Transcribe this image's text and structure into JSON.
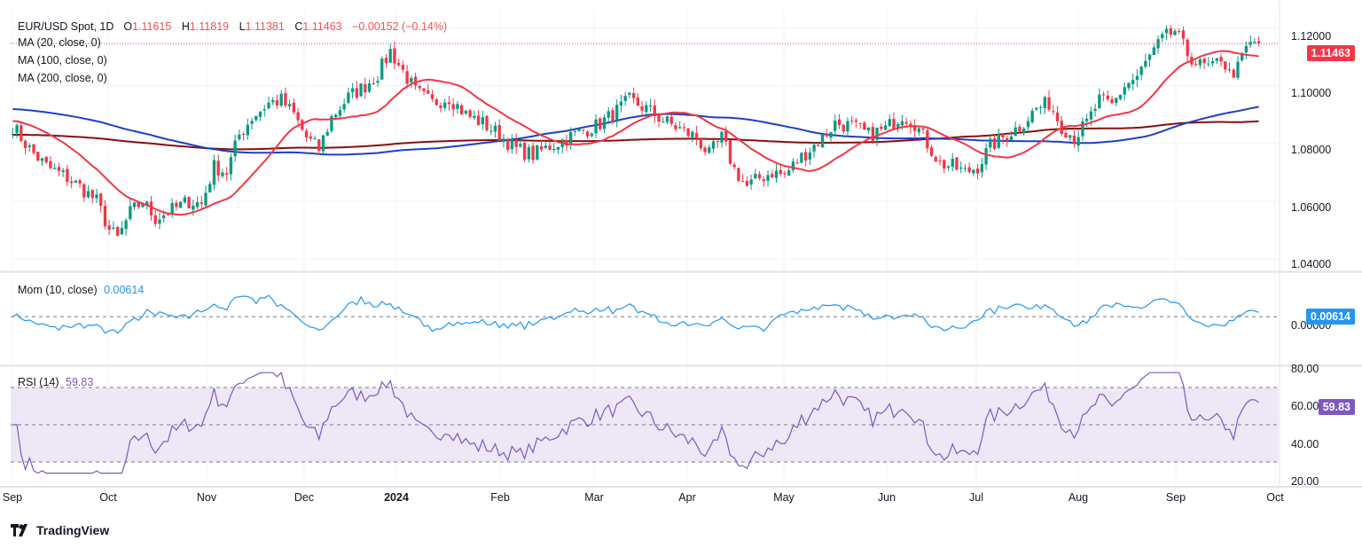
{
  "header": {
    "symbol": "EUR/USD Spot, 1D",
    "open_label": "O",
    "open": "1.11615",
    "high_label": "H",
    "high": "1.11819",
    "low_label": "L",
    "low": "1.11381",
    "close_label": "C",
    "close": "1.11463",
    "change": "−0.00152 (−0.14%)"
  },
  "indicators": {
    "ma20": "MA (20, close, 0)",
    "ma100": "MA (100, close, 0)",
    "ma200": "MA (200, close, 0)",
    "mom_label": "Mom (10, close)",
    "mom_value": "0.00614",
    "rsi_label": "RSI (14)",
    "rsi_value": "59.83"
  },
  "price_axis": [
    "1.12000",
    "1.10000",
    "1.08000",
    "1.06000",
    "1.04000"
  ],
  "mom_axis": [
    "0.00000"
  ],
  "rsi_axis": [
    "80.00",
    "60.00",
    "40.00",
    "20.00"
  ],
  "x_axis": [
    {
      "label": "Sep",
      "bold": false
    },
    {
      "label": "Oct",
      "bold": false
    },
    {
      "label": "Nov",
      "bold": false
    },
    {
      "label": "Dec",
      "bold": false
    },
    {
      "label": "2024",
      "bold": true
    },
    {
      "label": "Feb",
      "bold": false
    },
    {
      "label": "Mar",
      "bold": false
    },
    {
      "label": "Apr",
      "bold": false
    },
    {
      "label": "May",
      "bold": false
    },
    {
      "label": "Jun",
      "bold": false
    },
    {
      "label": "Jul",
      "bold": false
    },
    {
      "label": "Aug",
      "bold": false
    },
    {
      "label": "Sep",
      "bold": false
    },
    {
      "label": "Oct",
      "bold": false
    }
  ],
  "last_price_tag": "1.11463",
  "brand": "TradingView",
  "colors": {
    "up": "#089981",
    "down": "#f23645",
    "ma20": "#f23645",
    "ma100": "#1e3fc2",
    "ma200": "#880e0e",
    "momentum": "#2196f3",
    "rsi": "#7e57c2",
    "rsi_band": "#ede7f6"
  },
  "chart_data": {
    "type": "candlestick",
    "ylim": [
      1.036,
      1.126
    ],
    "anchors": [
      [
        0,
        1.086
      ],
      [
        4,
        1.078
      ],
      [
        8,
        1.072
      ],
      [
        12,
        1.069
      ],
      [
        16,
        1.065
      ],
      [
        20,
        1.06
      ],
      [
        23,
        1.05
      ],
      [
        25,
        1.047
      ],
      [
        28,
        1.056
      ],
      [
        31,
        1.06
      ],
      [
        34,
        1.054
      ],
      [
        38,
        1.057
      ],
      [
        42,
        1.06
      ],
      [
        45,
        1.059
      ],
      [
        48,
        1.072
      ],
      [
        51,
        1.07
      ],
      [
        54,
        1.083
      ],
      [
        57,
        1.089
      ],
      [
        61,
        1.094
      ],
      [
        64,
        1.095
      ],
      [
        67,
        1.09
      ],
      [
        70,
        1.082
      ],
      [
        73,
        1.078
      ],
      [
        76,
        1.089
      ],
      [
        80,
        1.096
      ],
      [
        84,
        1.1
      ],
      [
        87,
        1.104
      ],
      [
        90,
        1.112
      ],
      [
        93,
        1.105
      ],
      [
        96,
        1.098
      ],
      [
        100,
        1.094
      ],
      [
        104,
        1.096
      ],
      [
        108,
        1.09
      ],
      [
        112,
        1.087
      ],
      [
        116,
        1.083
      ],
      [
        120,
        1.078
      ],
      [
        124,
        1.076
      ],
      [
        128,
        1.079
      ],
      [
        131,
        1.081
      ],
      [
        135,
        1.084
      ],
      [
        139,
        1.086
      ],
      [
        143,
        1.09
      ],
      [
        147,
        1.095
      ],
      [
        151,
        1.092
      ],
      [
        155,
        1.088
      ],
      [
        159,
        1.085
      ],
      [
        163,
        1.082
      ],
      [
        166,
        1.076
      ],
      [
        169,
        1.082
      ],
      [
        172,
        1.071
      ],
      [
        175,
        1.065
      ],
      [
        178,
        1.068
      ],
      [
        181,
        1.07
      ],
      [
        184,
        1.069
      ],
      [
        187,
        1.074
      ],
      [
        190,
        1.078
      ],
      [
        193,
        1.082
      ],
      [
        196,
        1.087
      ],
      [
        200,
        1.086
      ],
      [
        204,
        1.083
      ],
      [
        208,
        1.085
      ],
      [
        212,
        1.09
      ],
      [
        215,
        1.087
      ],
      [
        218,
        1.08
      ],
      [
        221,
        1.073
      ],
      [
        224,
        1.072
      ],
      [
        227,
        1.07
      ],
      [
        230,
        1.072
      ],
      [
        233,
        1.079
      ],
      [
        237,
        1.083
      ],
      [
        240,
        1.086
      ],
      [
        244,
        1.092
      ],
      [
        247,
        1.094
      ],
      [
        250,
        1.086
      ],
      [
        253,
        1.082
      ],
      [
        256,
        1.087
      ],
      [
        259,
        1.095
      ],
      [
        262,
        1.093
      ],
      [
        265,
        1.1
      ],
      [
        268,
        1.103
      ],
      [
        271,
        1.11
      ],
      [
        274,
        1.116
      ],
      [
        277,
        1.119
      ],
      [
        280,
        1.111
      ],
      [
        283,
        1.107
      ],
      [
        286,
        1.106
      ],
      [
        288,
        1.11
      ],
      [
        290,
        1.104
      ],
      [
        292,
        1.106
      ],
      [
        294,
        1.113
      ],
      [
        296,
        1.115
      ],
      [
        297,
        1.1146
      ]
    ],
    "last_close": 1.11463,
    "mom_range": [
      -0.05,
      0.045
    ],
    "rsi_ylim": [
      20,
      80
    ],
    "rsi_bands": [
      30,
      50,
      70
    ]
  }
}
